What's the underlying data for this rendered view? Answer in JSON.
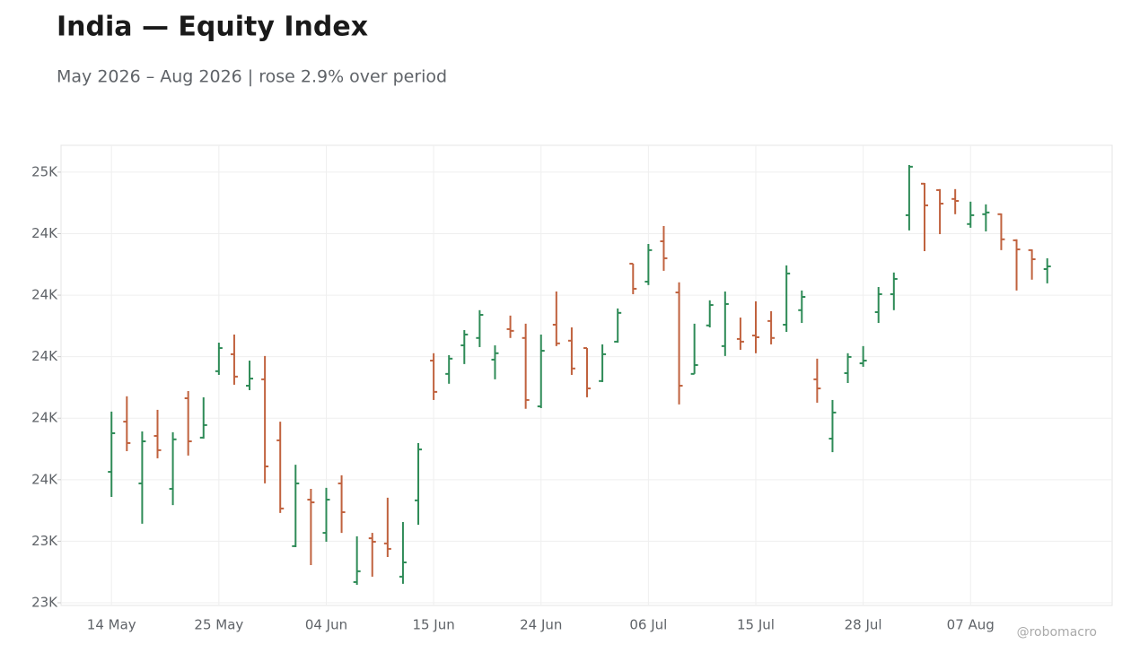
{
  "chart_data": {
    "type": "ohlc",
    "title": "India — Equity Index",
    "subtitle": "May 2026 – Aug 2026 | rose 2.9% over period",
    "credit": "@robomacro",
    "categories": [
      "14 May",
      null,
      null,
      null,
      null,
      null,
      null,
      "25 May",
      null,
      null,
      null,
      null,
      null,
      null,
      "04 Jun",
      null,
      null,
      null,
      null,
      null,
      null,
      "15 Jun",
      null,
      null,
      null,
      null,
      null,
      null,
      "24 Jun",
      null,
      null,
      null,
      null,
      null,
      null,
      "06 Jul",
      null,
      null,
      null,
      null,
      null,
      null,
      "15 Jul",
      null,
      null,
      null,
      null,
      null,
      null,
      "28 Jul",
      null,
      null,
      null,
      null,
      null,
      null,
      "07 Aug",
      null,
      null,
      null,
      null,
      null
    ],
    "open": [
      23532,
      23736,
      23485,
      23678,
      23463,
      23831,
      23671,
      23941,
      24010,
      23882,
      23908,
      23660,
      23230,
      23419,
      23284,
      23485,
      23084,
      23262,
      23241,
      23106,
      23416,
      23984,
      23930,
      24046,
      24076,
      23988,
      24112,
      24076,
      23798,
      24130,
      24065,
      24035,
      23901,
      24061,
      24378,
      24305,
      24469,
      24261,
      23930,
      24127,
      24043,
      24072,
      24086,
      24145,
      24130,
      24189,
      23908,
      23667,
      23933,
      23973,
      24181,
      24254,
      24575,
      24703,
      24677,
      24641,
      24539,
      24579,
      24579,
      24473,
      24433,
      24356
    ],
    "high": [
      23777,
      23839,
      23696,
      23784,
      23693,
      23860,
      23835,
      24057,
      24090,
      23984,
      24003,
      23736,
      23561,
      23463,
      23467,
      23518,
      23270,
      23284,
      23427,
      23328,
      23649,
      24014,
      24006,
      24108,
      24189,
      24046,
      24167,
      24134,
      24090,
      24265,
      24119,
      24035,
      24050,
      24196,
      24378,
      24458,
      24531,
      24302,
      24134,
      24229,
      24265,
      24159,
      24225,
      24185,
      24371,
      24269,
      23992,
      23824,
      24014,
      24043,
      24283,
      24342,
      24779,
      24706,
      24681,
      24681,
      24630,
      24619,
      24582,
      24477,
      24436,
      24400
    ],
    "low": [
      23430,
      23616,
      23321,
      23587,
      23397,
      23598,
      23667,
      23926,
      23886,
      23864,
      23485,
      23365,
      23226,
      23153,
      23248,
      23284,
      23073,
      23106,
      23186,
      23077,
      23317,
      23824,
      23890,
      23970,
      24039,
      23908,
      24076,
      23788,
      23791,
      24043,
      23926,
      23835,
      23897,
      24057,
      24254,
      24291,
      24349,
      23806,
      23930,
      24119,
      24003,
      24028,
      24014,
      24050,
      24101,
      24137,
      23813,
      23612,
      23893,
      23959,
      24137,
      24189,
      24513,
      24429,
      24498,
      24579,
      24524,
      24509,
      24433,
      24269,
      24313,
      24298
    ],
    "close": [
      23689,
      23649,
      23656,
      23620,
      23664,
      23656,
      23722,
      24035,
      23919,
      23911,
      23554,
      23383,
      23485,
      23408,
      23419,
      23368,
      23128,
      23248,
      23219,
      23164,
      23623,
      23857,
      23992,
      24090,
      24170,
      24014,
      24105,
      23824,
      24024,
      24054,
      23952,
      23871,
      24010,
      24178,
      24276,
      24433,
      24400,
      23882,
      23966,
      24210,
      24214,
      24061,
      24079,
      24076,
      24338,
      24243,
      23871,
      23773,
      23999,
      23984,
      24254,
      24316,
      24772,
      24615,
      24622,
      24633,
      24575,
      24586,
      24477,
      24436,
      24396,
      24367
    ],
    "up_color": "#2e8b57",
    "down_color": "#c0623e",
    "ylim": [
      22989,
      24859
    ],
    "yticks": [
      {
        "value": 23000,
        "label": "23K"
      },
      {
        "value": 23250,
        "label": "23K"
      },
      {
        "value": 23500,
        "label": "24K"
      },
      {
        "value": 23750,
        "label": "24K"
      },
      {
        "value": 24000,
        "label": "24K"
      },
      {
        "value": 24250,
        "label": "24K"
      },
      {
        "value": 24500,
        "label": "24K"
      },
      {
        "value": 24750,
        "label": "25K"
      }
    ],
    "grid": true
  }
}
